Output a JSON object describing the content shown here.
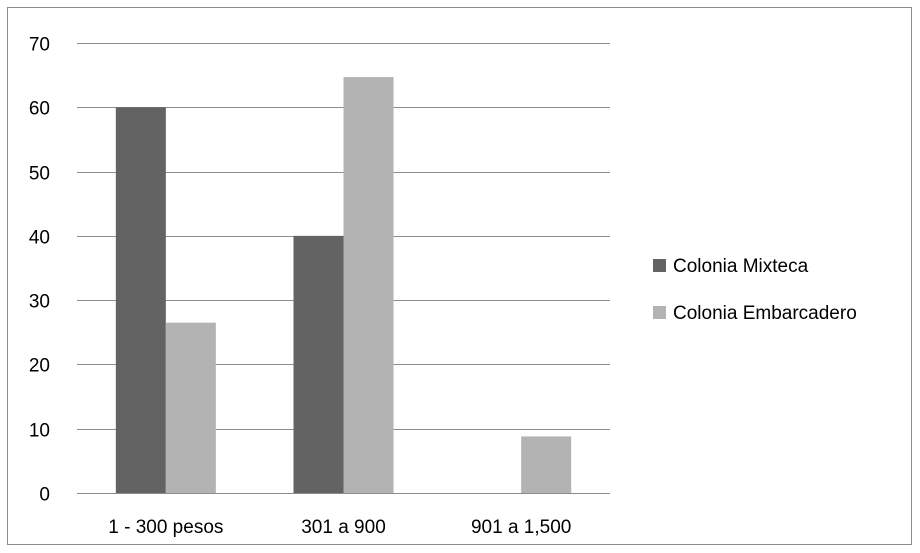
{
  "chart_data": {
    "type": "bar",
    "categories": [
      "1 - 300 pesos",
      "301 a 900",
      "901 a 1,500"
    ],
    "series": [
      {
        "name": "Colonia Mixteca",
        "values": [
          60,
          40,
          0
        ],
        "color": "#636363"
      },
      {
        "name": "Colonia Embarcadero",
        "values": [
          26.5,
          64.7,
          8.8
        ],
        "color": "#b3b3b3"
      }
    ],
    "yticks": [
      0,
      10,
      20,
      30,
      40,
      50,
      60,
      70
    ],
    "ylim": [
      0,
      70
    ],
    "grid": true,
    "legend_position": "right"
  }
}
